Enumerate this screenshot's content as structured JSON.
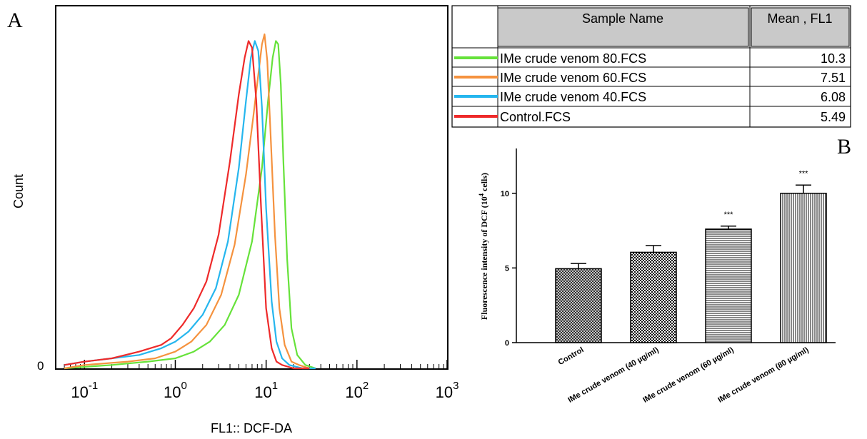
{
  "panel_a_label": "A",
  "panel_b_label": "B",
  "chart_data": [
    {
      "type": "line",
      "xlabel": "FL1:: DCF-DA",
      "ylabel": "Count",
      "x_scale": "log",
      "xlim": [
        0.05,
        1000
      ],
      "x_ticks": [
        {
          "value": 0.1,
          "base": "10",
          "exp": "-1"
        },
        {
          "value": 1,
          "base": "10",
          "exp": "0"
        },
        {
          "value": 10,
          "base": "10",
          "exp": "1"
        },
        {
          "value": 100,
          "base": "10",
          "exp": "2"
        },
        {
          "value": 1000,
          "base": "10",
          "exp": "3"
        }
      ],
      "y_tick_label": "0",
      "ylim": [
        0,
        100
      ],
      "series": [
        {
          "name": "Control.FCS",
          "color": "#ee2a2a",
          "x": [
            0.06,
            0.1,
            0.2,
            0.4,
            0.7,
            0.9,
            1.2,
            1.6,
            2.2,
            3.0,
            4.0,
            5.0,
            5.8,
            6.4,
            7.0,
            7.8,
            8.8,
            10.0,
            11.5,
            13.0,
            15.0,
            20.0,
            30.0
          ],
          "y": [
            1,
            2,
            3,
            5,
            7,
            9,
            13,
            18,
            26,
            40,
            62,
            82,
            93,
            98,
            96,
            80,
            48,
            18,
            6,
            2,
            1,
            0,
            0
          ]
        },
        {
          "name": "IMe crude venom 40.FCS",
          "color": "#25b6ee",
          "x": [
            0.06,
            0.1,
            0.2,
            0.4,
            0.7,
            1.0,
            1.4,
            2.0,
            2.8,
            3.8,
            5.0,
            6.0,
            6.8,
            7.5,
            8.2,
            9.0,
            10.0,
            11.5,
            13.0,
            15.0,
            18.0,
            25.0,
            35.0
          ],
          "y": [
            1,
            2,
            3,
            4,
            6,
            8,
            11,
            16,
            24,
            38,
            60,
            80,
            93,
            98,
            95,
            78,
            48,
            20,
            8,
            3,
            1,
            0,
            0
          ]
        },
        {
          "name": "IMe crude venom 60.FCS",
          "color": "#f5923e",
          "x": [
            0.06,
            0.1,
            0.3,
            0.6,
            1.0,
            1.5,
            2.2,
            3.2,
            4.5,
            6.0,
            7.2,
            8.2,
            9.0,
            9.6,
            10.3,
            11.2,
            12.5,
            14.0,
            16.0,
            19.0,
            23.0,
            30.0
          ],
          "y": [
            0,
            1,
            2,
            3,
            5,
            8,
            13,
            22,
            37,
            58,
            75,
            88,
            97,
            100,
            92,
            70,
            40,
            18,
            7,
            2,
            1,
            0
          ]
        },
        {
          "name": "IMe crude venom 80.FCS",
          "color": "#66e23a",
          "x": [
            0.06,
            0.2,
            0.5,
            1.0,
            1.6,
            2.4,
            3.5,
            5.0,
            7.0,
            9.0,
            10.5,
            11.8,
            12.8,
            13.6,
            14.5,
            15.5,
            17.0,
            19.0,
            22.0,
            27.0,
            35.0
          ],
          "y": [
            0,
            1,
            2,
            3,
            5,
            8,
            13,
            22,
            38,
            60,
            80,
            93,
            98,
            97,
            85,
            62,
            33,
            12,
            4,
            1,
            0
          ]
        }
      ],
      "table": {
        "headers": [
          "Sample Name",
          "Mean , FL1"
        ],
        "rows": [
          {
            "name": "IMe crude venom 80.FCS",
            "mean": "10.3",
            "color": "#66e23a"
          },
          {
            "name": "IMe crude venom 60.FCS",
            "mean": "7.51",
            "color": "#f5923e"
          },
          {
            "name": "IMe crude venom 40.FCS",
            "mean": "6.08",
            "color": "#25b6ee"
          },
          {
            "name": "Control.FCS",
            "mean": "5.49",
            "color": "#ee2a2a"
          }
        ]
      }
    },
    {
      "type": "bar",
      "ylabel_text": "Fluorescence intensity of DCF (10",
      "ylabel_sup": "4",
      "ylabel_end": " cells)",
      "ylim": [
        0,
        13
      ],
      "y_ticks": [
        0,
        5,
        10
      ],
      "categories": [
        "Control",
        "IMe crude venom (40 µg/ml)",
        "IMe crude venom (60 µg/ml)",
        "IMe crude venom (80 µg/ml)"
      ],
      "values": [
        4.95,
        6.05,
        7.6,
        10.0
      ],
      "errors": [
        0.35,
        0.45,
        0.2,
        0.55
      ],
      "annotations": [
        "",
        "",
        "***",
        "***"
      ],
      "patterns": [
        "crosshatch",
        "checker",
        "horizontal",
        "vertical"
      ]
    }
  ]
}
